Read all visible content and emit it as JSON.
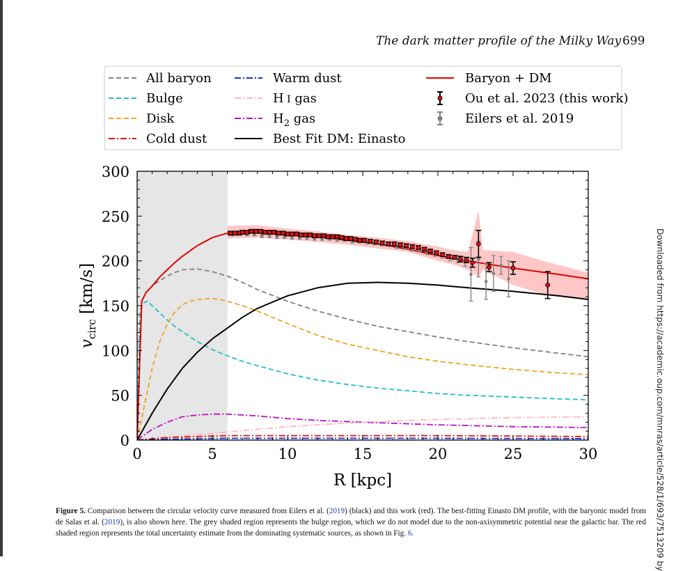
{
  "header": {
    "journal_title": "The dark matter profile of the Milky Way",
    "page_number": "699"
  },
  "side_note": "Downloaded from https://academic.oup.com/mnras/article/528/1/693/7513209 by",
  "caption": {
    "label": "Figure 5.",
    "p1": " Comparison between the circular velocity curve measured from Eilers et al. (",
    "ref1": "2019",
    "p2": ") (black) and this work (red). The best-fitting Einasto DM profile, with the baryonic model from de Salas et al. (",
    "ref2": "2019",
    "p3": "), is also shown here. The grey shaded region represents the bulge region, which we do not model due to the non-axisymmetric potential near the galactic bar. The red shaded region represents the total uncertainty estimate from the dominating systematic sources, as shown in Fig. ",
    "ref3": "6",
    "p4": "."
  },
  "colors": {
    "all_baryon": "#808080",
    "bulge": "#20c0c0",
    "disk": "#f5a020",
    "cold_dust": "#e01010",
    "warm_dust": "#1030e0",
    "hi_gas": "#ffb6c1",
    "h2_gas": "#c010c0",
    "dm": "#000000",
    "total": "#e00000",
    "band": "#ffc0c0",
    "bulge_region": "#e6e6e6",
    "eilers": "#808080"
  },
  "chart_data": {
    "type": "line",
    "xlabel": "R [kpc]",
    "ylabel": "v_circ [km/s]",
    "ylabel_main": "v",
    "ylabel_sub": "circ",
    "ylabel_unit": "[km/s]",
    "xlim": [
      0,
      30
    ],
    "ylim": [
      0,
      300
    ],
    "xticks": [
      0,
      5,
      10,
      15,
      20,
      25,
      30
    ],
    "yticks": [
      0,
      50,
      100,
      150,
      200,
      250,
      300
    ],
    "grid": false,
    "legend_position": "top",
    "bulge_region": [
      0,
      6
    ],
    "legend": [
      {
        "key": "all_baryon",
        "label": "All baryon",
        "style": "dashed"
      },
      {
        "key": "bulge",
        "label": "Bulge",
        "style": "dashed"
      },
      {
        "key": "disk",
        "label": "Disk",
        "style": "dashed"
      },
      {
        "key": "cold_dust",
        "label": "Cold dust",
        "style": "dashdot"
      },
      {
        "key": "warm_dust",
        "label": "Warm dust",
        "style": "dashdot"
      },
      {
        "key": "hi_gas",
        "label": "H I gas",
        "label_main": "H",
        "label_roman": "I",
        "label_rest": " gas",
        "style": "dashdot"
      },
      {
        "key": "h2_gas",
        "label": "H2 gas",
        "label_main": "H",
        "label_sub": "2",
        "label_rest": " gas",
        "style": "dashdot"
      },
      {
        "key": "dm",
        "label": "Best Fit DM: Einasto",
        "style": "solid"
      },
      {
        "key": "total",
        "label": "Baryon + DM",
        "style": "solid"
      },
      {
        "key": "ou2023",
        "label": "Ou et al. 2023 (this work)",
        "style": "errorbar"
      },
      {
        "key": "eilers",
        "label": "Eilers et al. 2019",
        "style": "errorbar"
      }
    ],
    "series": [
      {
        "key": "all_baryon",
        "x": [
          0,
          0.3,
          0.6,
          1,
          1.5,
          2,
          2.5,
          3,
          4,
          5,
          6,
          7,
          8,
          10,
          12,
          14,
          16,
          18,
          20,
          22,
          25,
          28,
          30
        ],
        "y": [
          0,
          155,
          165,
          172,
          178,
          183,
          187,
          190,
          191,
          188,
          183,
          176,
          168,
          155,
          144,
          135,
          127,
          121,
          115,
          110,
          103,
          97,
          93
        ]
      },
      {
        "key": "bulge",
        "x": [
          0,
          0.2,
          0.4,
          0.7,
          1,
          1.5,
          2,
          2.5,
          3,
          4,
          5,
          6,
          7,
          8,
          10,
          12,
          14,
          16,
          18,
          20,
          22,
          25,
          28,
          30
        ],
        "y": [
          0,
          145,
          153,
          155,
          150,
          142,
          134,
          127,
          121,
          110,
          101,
          94,
          88,
          83,
          74,
          67,
          62,
          58,
          55,
          52,
          50,
          48,
          46,
          45
        ]
      },
      {
        "key": "disk",
        "x": [
          0,
          0.5,
          1,
          1.5,
          2,
          2.5,
          3,
          3.5,
          4,
          5,
          5.5,
          6,
          7,
          8,
          10,
          12,
          14,
          16,
          18,
          20,
          22,
          25,
          28,
          30
        ],
        "y": [
          0,
          40,
          80,
          110,
          130,
          143,
          151,
          155,
          157,
          158,
          157,
          155,
          150,
          144,
          130,
          117,
          107,
          100,
          93,
          88,
          84,
          79,
          75,
          73
        ]
      },
      {
        "key": "h2_gas",
        "x": [
          0,
          1,
          2,
          3,
          4,
          5,
          6,
          7,
          8,
          10,
          12,
          15,
          20,
          25,
          30
        ],
        "y": [
          0,
          12,
          20,
          26,
          28,
          29,
          29,
          28,
          27,
          24,
          22,
          20,
          17,
          15,
          14
        ]
      },
      {
        "key": "hi_gas",
        "x": [
          0,
          2,
          4,
          6,
          8,
          10,
          12,
          15,
          18,
          20,
          25,
          30
        ],
        "y": [
          0,
          3,
          6,
          9,
          12,
          15,
          17,
          20,
          22,
          23,
          25,
          26
        ]
      },
      {
        "key": "cold_dust",
        "x": [
          0,
          2,
          4,
          6,
          8,
          10,
          15,
          20,
          25,
          30
        ],
        "y": [
          0,
          3,
          4,
          5,
          5,
          5,
          5,
          5,
          4.5,
          4
        ]
      },
      {
        "key": "warm_dust",
        "x": [
          0,
          2,
          4,
          6,
          8,
          10,
          15,
          20,
          25,
          30
        ],
        "y": [
          0,
          1,
          1.5,
          2,
          2,
          2,
          2,
          2,
          1.8,
          1.6
        ]
      },
      {
        "key": "dm",
        "x": [
          0,
          1,
          2,
          3,
          4,
          5,
          6,
          7,
          8,
          10,
          12,
          14,
          16,
          18,
          20,
          22,
          25,
          28,
          30
        ],
        "y": [
          0,
          30,
          57,
          80,
          98,
          113,
          125,
          137,
          147,
          161,
          170,
          175,
          176,
          175,
          173,
          170,
          166,
          161,
          157
        ]
      },
      {
        "key": "total",
        "x": [
          0,
          0.3,
          0.6,
          1,
          1.5,
          2,
          2.5,
          3,
          4,
          5,
          6,
          7,
          8,
          10,
          12,
          14,
          16,
          18,
          20,
          22,
          25,
          28,
          30
        ],
        "y": [
          0,
          155,
          165,
          172,
          182,
          190,
          198,
          205,
          217,
          226,
          231,
          233,
          234,
          231,
          227,
          223,
          219,
          213,
          206,
          200,
          192,
          185,
          180
        ]
      }
    ],
    "band": {
      "x": [
        6,
        8,
        10,
        12,
        14,
        16,
        18,
        20,
        21,
        22,
        22.7,
        23,
        25,
        27,
        30
      ],
      "upper": [
        239,
        240,
        236,
        233,
        229,
        226,
        222,
        216,
        212,
        210,
        256,
        212,
        210,
        200,
        187
      ],
      "lower": [
        225,
        226,
        224,
        221,
        218,
        214,
        210,
        200,
        196,
        190,
        182,
        190,
        173,
        163,
        157
      ]
    },
    "ou2023": {
      "x": [
        6.2,
        6.5,
        6.8,
        7,
        7.3,
        7.6,
        7.9,
        8.2,
        8.5,
        8.8,
        9.1,
        9.4,
        9.7,
        10,
        10.3,
        10.6,
        10.9,
        11.2,
        11.5,
        11.8,
        12.1,
        12.4,
        12.7,
        13,
        13.3,
        13.6,
        13.9,
        14.2,
        14.5,
        14.8,
        15.1,
        15.5,
        15.9,
        16.3,
        16.7,
        17.1,
        17.5,
        17.9,
        18.3,
        18.7,
        19.1,
        19.5,
        19.9,
        20.3,
        20.7,
        21.1,
        21.5,
        21.9,
        22.3,
        22.7,
        23.4,
        25,
        27.3
      ],
      "y": [
        231,
        231,
        231,
        232,
        232,
        233,
        233,
        233,
        232,
        232,
        232,
        231,
        231,
        230,
        230,
        230,
        229,
        229,
        229,
        228,
        228,
        228,
        227,
        227,
        227,
        226,
        225,
        225,
        224,
        223,
        223,
        222,
        221,
        220,
        219,
        219,
        218,
        217,
        216,
        215,
        213,
        211,
        209,
        207,
        205,
        204,
        202,
        201,
        198,
        219,
        193,
        192,
        173
      ],
      "err": [
        2,
        2,
        2,
        2,
        2,
        2,
        2,
        2,
        2,
        2,
        2,
        2,
        2,
        2,
        2,
        2,
        2,
        2,
        2,
        2,
        2,
        2,
        2,
        2,
        2,
        2,
        2,
        2,
        2,
        2,
        2,
        2,
        2,
        2,
        2,
        2,
        2,
        2,
        2,
        2,
        2,
        2,
        2,
        2,
        2,
        2,
        3,
        3,
        5,
        15,
        5,
        7,
        15
      ]
    },
    "eilers": {
      "x": [
        6.3,
        6.8,
        7.3,
        7.8,
        8.3,
        8.8,
        9.3,
        9.8,
        10.3,
        10.8,
        11.3,
        11.8,
        12.3,
        12.8,
        13.3,
        13.8,
        14.3,
        14.8,
        15.3,
        15.8,
        16.3,
        16.8,
        17.3,
        17.8,
        18.3,
        18.8,
        19.3,
        19.8,
        20.3,
        20.8,
        21.3,
        21.8,
        22.2,
        22.7,
        23.2,
        23.7,
        24.2,
        24.7
      ],
      "y": [
        230,
        231,
        230,
        230,
        228,
        228,
        227,
        227,
        226,
        226,
        226,
        225,
        225,
        225,
        224,
        224,
        222,
        222,
        221,
        220,
        219,
        218,
        216,
        215,
        213,
        212,
        210,
        208,
        206,
        203,
        202,
        199,
        185,
        202,
        177,
        186,
        195,
        180
      ],
      "err": [
        2,
        2,
        2,
        2,
        2,
        2,
        2,
        2,
        2,
        2,
        2,
        2,
        2,
        2,
        2,
        2,
        2,
        2,
        2,
        2,
        2,
        2,
        2,
        2,
        2,
        2,
        3,
        3,
        3,
        3,
        4,
        5,
        30,
        20,
        20,
        20,
        10,
        20
      ]
    }
  }
}
